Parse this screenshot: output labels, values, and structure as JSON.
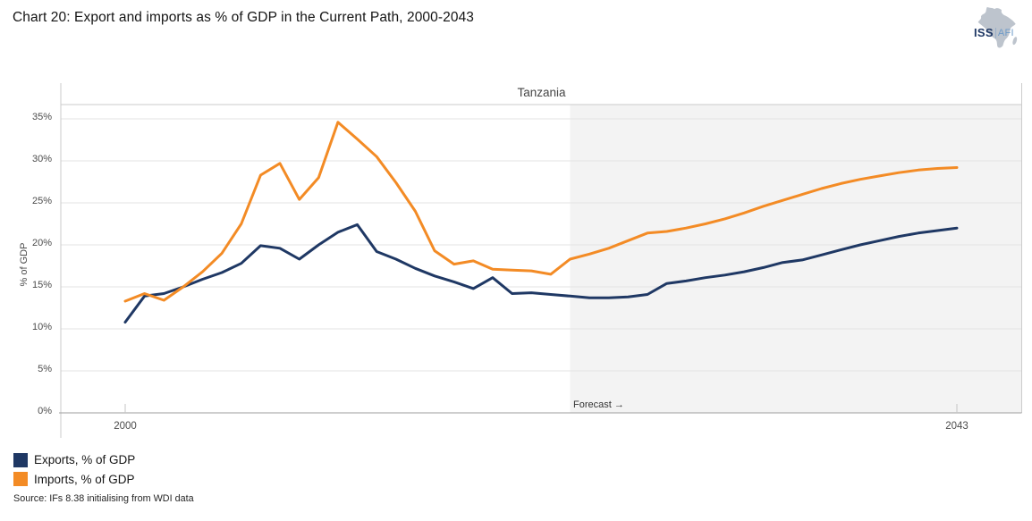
{
  "page": {
    "title": "Chart 20: Export and imports as % of GDP in the Current Path, 2000-2043",
    "source": "Source: IFs 8.38 initialising from WDI data"
  },
  "logo": {
    "iss": "ISS",
    "afi": "AFI",
    "iss_color": "#1f3864",
    "afi_color": "#6f9bc8",
    "africa_color": "#bdc4cd"
  },
  "chart_data": {
    "type": "line",
    "title": "Tanzania",
    "ylabel": "% of GDP",
    "ylim": [
      0,
      36.7
    ],
    "grid": true,
    "legend_position": "bottom-left",
    "years": [
      2000,
      2001,
      2002,
      2003,
      2004,
      2005,
      2006,
      2007,
      2008,
      2009,
      2010,
      2011,
      2012,
      2013,
      2014,
      2015,
      2016,
      2017,
      2018,
      2019,
      2020,
      2021,
      2022,
      2023,
      2024,
      2025,
      2026,
      2027,
      2028,
      2029,
      2030,
      2031,
      2032,
      2033,
      2034,
      2035,
      2036,
      2037,
      2038,
      2039,
      2040,
      2041,
      2042,
      2043
    ],
    "x_ticks": [
      {
        "year": 2000,
        "label": "2000"
      },
      {
        "year": 2043,
        "label": "2043"
      }
    ],
    "y_ticks": [
      {
        "value": 0,
        "label": "0%"
      },
      {
        "value": 5,
        "label": "5%"
      },
      {
        "value": 10,
        "label": "10%"
      },
      {
        "value": 15,
        "label": "15%"
      },
      {
        "value": 20,
        "label": "20%"
      },
      {
        "value": 25,
        "label": "25%"
      },
      {
        "value": 30,
        "label": "30%"
      },
      {
        "value": 35,
        "label": "35%"
      }
    ],
    "forecast": {
      "label": "Forecast →",
      "start_year": 2023,
      "fill": "#f3f3f3"
    },
    "series": [
      {
        "id": "exports",
        "name": "Exports, % of GDP",
        "color": "#1f3864",
        "values": [
          10.8,
          13.9,
          14.2,
          15.0,
          15.9,
          16.7,
          17.8,
          19.9,
          19.6,
          18.3,
          20.0,
          21.5,
          22.4,
          19.2,
          18.3,
          17.2,
          16.3,
          15.6,
          14.8,
          16.1,
          14.2,
          14.3,
          14.1,
          13.9,
          13.7,
          13.7,
          13.8,
          14.1,
          15.4,
          15.7,
          16.1,
          16.4,
          16.8,
          17.3,
          17.9,
          18.2,
          18.8,
          19.4,
          20.0,
          20.5,
          21.0,
          21.4,
          21.7,
          22.0
        ]
      },
      {
        "id": "imports",
        "name": "Imports, % of GDP",
        "color": "#f38b25",
        "values": [
          13.3,
          14.2,
          13.4,
          15.0,
          16.8,
          19.0,
          22.5,
          28.3,
          29.7,
          25.4,
          28.0,
          34.6,
          32.6,
          30.5,
          27.4,
          24.0,
          19.3,
          17.7,
          18.1,
          17.1,
          17.0,
          16.9,
          16.5,
          18.3,
          18.9,
          19.6,
          20.5,
          21.4,
          21.6,
          22.0,
          22.5,
          23.1,
          23.8,
          24.6,
          25.3,
          26.0,
          26.7,
          27.3,
          27.8,
          28.2,
          28.6,
          28.9,
          29.1,
          29.2
        ]
      }
    ]
  }
}
